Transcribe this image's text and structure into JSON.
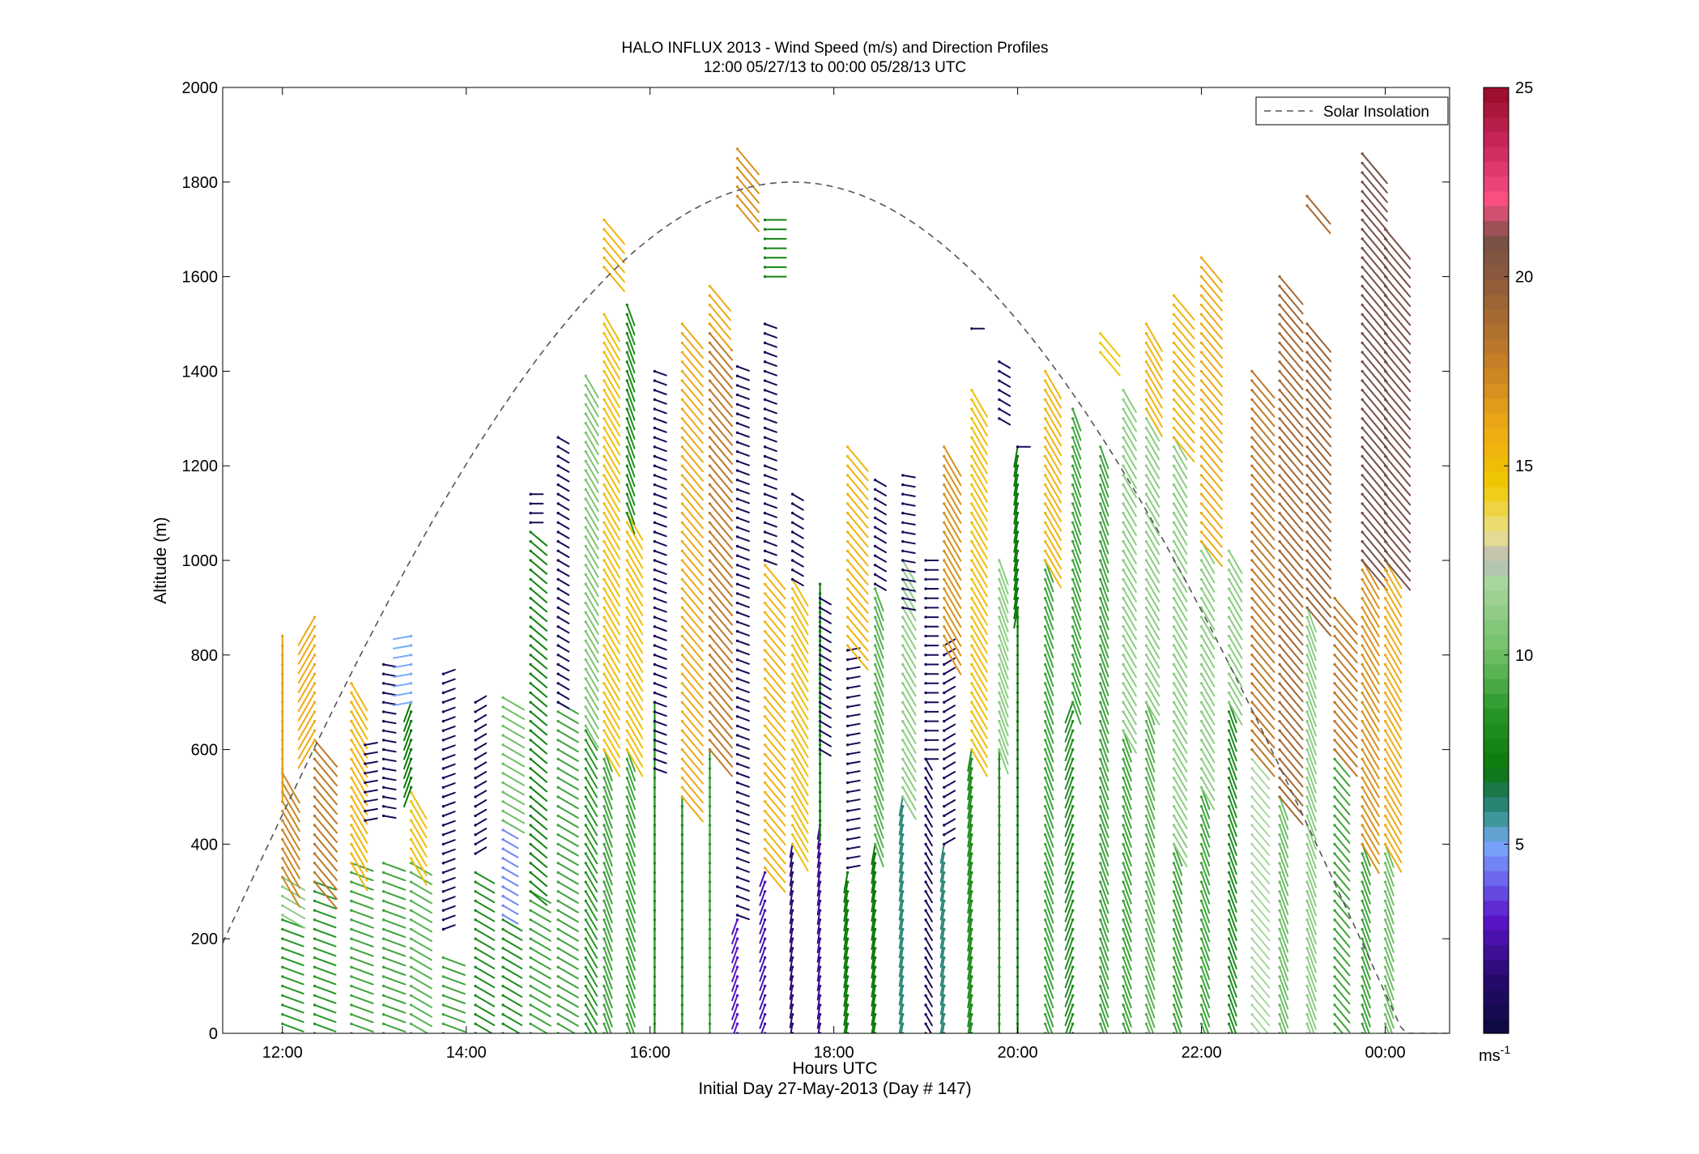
{
  "chart_data": {
    "type": "vector-wind-profile",
    "title": "HALO INFLUX 2013 - Wind Speed (m/s) and Direction Profiles",
    "subtitle": "12:00 05/27/13 to 00:00 05/28/13  UTC",
    "xlabel": "Hours UTC",
    "xlabel_note": "Initial Day 27-May-2013 (Day # 147)",
    "ylabel": "Altitude (m)",
    "xlim": [
      11.35,
      24.7
    ],
    "ylim": [
      0,
      2000
    ],
    "x_ticks": [
      12,
      14,
      16,
      18,
      20,
      22,
      24
    ],
    "x_tick_labels": [
      "12:00",
      "14:00",
      "16:00",
      "18:00",
      "20:00",
      "22:00",
      "00:00"
    ],
    "y_ticks": [
      0,
      200,
      400,
      600,
      800,
      1000,
      1200,
      1400,
      1600,
      1800,
      2000
    ],
    "y_tick_labels": [
      "0",
      "200",
      "400",
      "600",
      "800",
      "1000",
      "1200",
      "1400",
      "1600",
      "1800",
      "2000"
    ],
    "colorbar": {
      "range": [
        0,
        25
      ],
      "ticks": [
        5,
        10,
        15,
        20,
        25
      ],
      "tick_labels": [
        "5",
        "10",
        "15",
        "20",
        "25"
      ],
      "units": "ms",
      "units_exponent": "-1"
    },
    "legend": {
      "placement": "top-right",
      "entries": [
        {
          "label": "Solar Insolation",
          "style": "dashed",
          "color": "#555555"
        }
      ]
    },
    "solar_insolation": {
      "peak_time": 17.55,
      "peak_altitude": 1800,
      "half_width_hours": 6.65,
      "x_start": 11.35,
      "x_end": 24.7
    },
    "profiles": [
      {
        "t": 12.0,
        "segments": [
          {
            "z0": 0,
            "z1": 250,
            "speed": 8.5,
            "dir": 290
          },
          {
            "z0": 250,
            "z1": 330,
            "speed": 11,
            "dir": 300
          },
          {
            "z0": 330,
            "z1": 560,
            "speed": 17.5,
            "dir": 330
          },
          {
            "z0": 560,
            "z1": 850,
            "speed": 16.5,
            "dir": 0
          }
        ]
      },
      {
        "t": 12.35,
        "segments": [
          {
            "z0": 0,
            "z1": 320,
            "speed": 8.5,
            "dir": 290
          },
          {
            "z0": 320,
            "z1": 620,
            "speed": 18,
            "dir": 320
          },
          {
            "z0": 620,
            "z1": 880,
            "speed": 16,
            "dir": 30
          }
        ]
      },
      {
        "t": 12.75,
        "segments": [
          {
            "z0": 0,
            "z1": 360,
            "speed": 9,
            "dir": 290
          },
          {
            "z0": 360,
            "z1": 740,
            "speed": 15.5,
            "dir": 330
          }
        ]
      },
      {
        "t": 12.9,
        "segments": [
          {
            "z0": 450,
            "z1": 620,
            "speed": 0.8,
            "dir": 260
          }
        ]
      },
      {
        "t": 13.1,
        "segments": [
          {
            "z0": 0,
            "z1": 360,
            "speed": 9,
            "dir": 290
          },
          {
            "z0": 460,
            "z1": 780,
            "speed": 0.8,
            "dir": 280
          }
        ]
      },
      {
        "t": 13.4,
        "segments": [
          {
            "z0": 0,
            "z1": 370,
            "speed": 9.5,
            "dir": 300
          },
          {
            "z0": 370,
            "z1": 520,
            "speed": 15,
            "dir": 330
          },
          {
            "z0": 520,
            "z1": 700,
            "speed": 7,
            "dir": 20
          },
          {
            "z0": 700,
            "z1": 840,
            "speed": 5,
            "dir": 80
          }
        ]
      },
      {
        "t": 13.75,
        "segments": [
          {
            "z0": 0,
            "z1": 160,
            "speed": 9,
            "dir": 290
          },
          {
            "z0": 220,
            "z1": 770,
            "speed": 0.8,
            "dir": 250
          }
        ]
      },
      {
        "t": 14.1,
        "segments": [
          {
            "z0": 0,
            "z1": 350,
            "speed": 8,
            "dir": 300
          },
          {
            "z0": 380,
            "z1": 700,
            "speed": 0.8,
            "dir": 240
          }
        ]
      },
      {
        "t": 14.4,
        "segments": [
          {
            "z0": 0,
            "z1": 250,
            "speed": 8,
            "dir": 300
          },
          {
            "z0": 250,
            "z1": 450,
            "speed": 4.5,
            "dir": 300
          },
          {
            "z0": 450,
            "z1": 720,
            "speed": 10,
            "dir": 300
          }
        ]
      },
      {
        "t": 14.7,
        "segments": [
          {
            "z0": 0,
            "z1": 300,
            "speed": 9,
            "dir": 300
          },
          {
            "z0": 300,
            "z1": 1060,
            "speed": 7.5,
            "dir": 310
          },
          {
            "z0": 1080,
            "z1": 1150,
            "speed": 0.8,
            "dir": 270
          }
        ]
      },
      {
        "t": 15.0,
        "segments": [
          {
            "z0": 0,
            "z1": 700,
            "speed": 9,
            "dir": 300
          },
          {
            "z0": 700,
            "z1": 1260,
            "speed": 0.8,
            "dir": 300
          }
        ]
      },
      {
        "t": 15.3,
        "segments": [
          {
            "z0": 0,
            "z1": 650,
            "speed": 8.5,
            "dir": 330
          },
          {
            "z0": 650,
            "z1": 1400,
            "speed": 10.5,
            "dir": 330
          }
        ]
      },
      {
        "t": 15.5,
        "segments": [
          {
            "z0": 0,
            "z1": 600,
            "speed": 9,
            "dir": 340
          },
          {
            "z0": 600,
            "z1": 1520,
            "speed": 15,
            "dir": 330
          },
          {
            "z0": 1620,
            "z1": 1720,
            "speed": 15.5,
            "dir": 320
          }
        ]
      },
      {
        "t": 15.75,
        "segments": [
          {
            "z0": 0,
            "z1": 600,
            "speed": 9,
            "dir": 340
          },
          {
            "z0": 600,
            "z1": 1100,
            "speed": 15,
            "dir": 330
          },
          {
            "z0": 1100,
            "z1": 1540,
            "speed": 8,
            "dir": 340
          }
        ]
      },
      {
        "t": 16.05,
        "segments": [
          {
            "z0": 0,
            "z1": 700,
            "speed": 8,
            "dir": 0
          },
          {
            "z0": 560,
            "z1": 1410,
            "speed": 0.8,
            "dir": 290
          }
        ]
      },
      {
        "t": 16.35,
        "segments": [
          {
            "z0": 0,
            "z1": 500,
            "speed": 8,
            "dir": 0
          },
          {
            "z0": 500,
            "z1": 1500,
            "speed": 16,
            "dir": 320
          }
        ]
      },
      {
        "t": 16.65,
        "segments": [
          {
            "z0": 0,
            "z1": 600,
            "speed": 8.5,
            "dir": 0
          },
          {
            "z0": 600,
            "z1": 1500,
            "speed": 18,
            "dir": 320
          },
          {
            "z0": 1500,
            "z1": 1580,
            "speed": 16,
            "dir": 320
          }
        ]
      },
      {
        "t": 16.95,
        "segments": [
          {
            "z0": 0,
            "z1": 250,
            "speed": 3,
            "dir": 20
          },
          {
            "z0": 250,
            "z1": 1420,
            "speed": 0.8,
            "dir": 290
          },
          {
            "z0": 1750,
            "z1": 1880,
            "speed": 17,
            "dir": 320
          }
        ]
      },
      {
        "t": 17.25,
        "segments": [
          {
            "z0": 0,
            "z1": 350,
            "speed": 2.5,
            "dir": 20
          },
          {
            "z0": 350,
            "z1": 1000,
            "speed": 15.5,
            "dir": 320
          },
          {
            "z0": 1000,
            "z1": 1500,
            "speed": 0.8,
            "dir": 290
          },
          {
            "z0": 1600,
            "z1": 1720,
            "speed": 7.5,
            "dir": 270
          }
        ]
      },
      {
        "t": 17.55,
        "segments": [
          {
            "z0": 0,
            "z1": 400,
            "speed": 1.5,
            "dir": 10
          },
          {
            "z0": 400,
            "z1": 960,
            "speed": 15,
            "dir": 330
          },
          {
            "z0": 960,
            "z1": 1140,
            "speed": 0.8,
            "dir": 300
          }
        ]
      },
      {
        "t": 17.85,
        "segments": [
          {
            "z0": 0,
            "z1": 450,
            "speed": 2,
            "dir": 10
          },
          {
            "z0": 450,
            "z1": 950,
            "speed": 7,
            "dir": 0
          },
          {
            "z0": 600,
            "z1": 930,
            "speed": 0.8,
            "dir": 300
          }
        ]
      },
      {
        "t": 18.15,
        "segments": [
          {
            "z0": 0,
            "z1": 350,
            "speed": 7,
            "dir": 10
          },
          {
            "z0": 350,
            "z1": 820,
            "speed": 0.8,
            "dir": 260
          },
          {
            "z0": 820,
            "z1": 1240,
            "speed": 15.5,
            "dir": 320
          }
        ]
      },
      {
        "t": 18.45,
        "segments": [
          {
            "z0": 0,
            "z1": 400,
            "speed": 7,
            "dir": 10
          },
          {
            "z0": 400,
            "z1": 950,
            "speed": 9.5,
            "dir": 340
          },
          {
            "z0": 950,
            "z1": 1180,
            "speed": 0.8,
            "dir": 300
          }
        ]
      },
      {
        "t": 18.75,
        "segments": [
          {
            "z0": 0,
            "z1": 500,
            "speed": 6,
            "dir": 10
          },
          {
            "z0": 500,
            "z1": 1000,
            "speed": 11,
            "dir": 330
          },
          {
            "z0": 900,
            "z1": 1180,
            "speed": 0.8,
            "dir": 280
          }
        ]
      },
      {
        "t": 19.0,
        "segments": [
          {
            "z0": 0,
            "z1": 580,
            "speed": 1,
            "dir": 330
          },
          {
            "z0": 580,
            "z1": 1000,
            "speed": 0.8,
            "dir": 270
          }
        ]
      },
      {
        "t": 19.2,
        "segments": [
          {
            "z0": 0,
            "z1": 400,
            "speed": 6,
            "dir": 10
          },
          {
            "z0": 400,
            "z1": 820,
            "speed": 0.8,
            "dir": 240
          },
          {
            "z0": 820,
            "z1": 1240,
            "speed": 17,
            "dir": 330
          }
        ]
      },
      {
        "t": 19.5,
        "segments": [
          {
            "z0": 0,
            "z1": 600,
            "speed": 8,
            "dir": 10
          },
          {
            "z0": 600,
            "z1": 1360,
            "speed": 15,
            "dir": 330
          },
          {
            "z0": 1490,
            "z1": 1500,
            "speed": 0.8,
            "dir": 270
          }
        ]
      },
      {
        "t": 19.8,
        "segments": [
          {
            "z0": 0,
            "z1": 600,
            "speed": 8,
            "dir": 0
          },
          {
            "z0": 600,
            "z1": 1000,
            "speed": 11,
            "dir": 340
          },
          {
            "z0": 1300,
            "z1": 1420,
            "speed": 0.8,
            "dir": 300
          }
        ]
      },
      {
        "t": 20.0,
        "segments": [
          {
            "z0": 0,
            "z1": 900,
            "speed": 7,
            "dir": 0
          },
          {
            "z0": 900,
            "z1": 1240,
            "speed": 7,
            "dir": 10
          },
          {
            "z0": 1240,
            "z1": 1250,
            "speed": 0.8,
            "dir": 270
          }
        ]
      },
      {
        "t": 20.3,
        "segments": [
          {
            "z0": 0,
            "z1": 1000,
            "speed": 9,
            "dir": 340
          },
          {
            "z0": 1000,
            "z1": 1400,
            "speed": 15.5,
            "dir": 330
          }
        ]
      },
      {
        "t": 20.6,
        "segments": [
          {
            "z0": 0,
            "z1": 700,
            "speed": 8,
            "dir": 20
          },
          {
            "z0": 700,
            "z1": 1330,
            "speed": 9,
            "dir": 340
          }
        ]
      },
      {
        "t": 20.9,
        "segments": [
          {
            "z0": 0,
            "z1": 1240,
            "speed": 9,
            "dir": 340
          },
          {
            "z0": 1440,
            "z1": 1480,
            "speed": 14.5,
            "dir": 320
          }
        ]
      },
      {
        "t": 21.15,
        "segments": [
          {
            "z0": 0,
            "z1": 640,
            "speed": 9,
            "dir": 340
          },
          {
            "z0": 640,
            "z1": 1360,
            "speed": 11,
            "dir": 330
          }
        ]
      },
      {
        "t": 21.4,
        "segments": [
          {
            "z0": 0,
            "z1": 700,
            "speed": 9.5,
            "dir": 340
          },
          {
            "z0": 700,
            "z1": 1320,
            "speed": 11,
            "dir": 330
          },
          {
            "z0": 1320,
            "z1": 1500,
            "speed": 15.5,
            "dir": 330
          }
        ]
      },
      {
        "t": 21.7,
        "segments": [
          {
            "z0": 0,
            "z1": 400,
            "speed": 9,
            "dir": 340
          },
          {
            "z0": 400,
            "z1": 1260,
            "speed": 11,
            "dir": 330
          },
          {
            "z0": 1260,
            "z1": 1560,
            "speed": 15.5,
            "dir": 320
          }
        ]
      },
      {
        "t": 22.0,
        "segments": [
          {
            "z0": 0,
            "z1": 520,
            "speed": 9,
            "dir": 340
          },
          {
            "z0": 520,
            "z1": 1040,
            "speed": 11,
            "dir": 330
          },
          {
            "z0": 1040,
            "z1": 1640,
            "speed": 16,
            "dir": 320
          }
        ]
      },
      {
        "t": 22.3,
        "segments": [
          {
            "z0": 0,
            "z1": 700,
            "speed": 8,
            "dir": 340
          },
          {
            "z0": 700,
            "z1": 1020,
            "speed": 11,
            "dir": 330
          }
        ]
      },
      {
        "t": 22.55,
        "segments": [
          {
            "z0": 0,
            "z1": 600,
            "speed": 12,
            "dir": 320
          },
          {
            "z0": 600,
            "z1": 1400,
            "speed": 18,
            "dir": 320
          }
        ]
      },
      {
        "t": 22.85,
        "segments": [
          {
            "z0": 0,
            "z1": 500,
            "speed": 10,
            "dir": 340
          },
          {
            "z0": 500,
            "z1": 1600,
            "speed": 19,
            "dir": 320
          }
        ]
      },
      {
        "t": 23.15,
        "segments": [
          {
            "z0": 0,
            "z1": 900,
            "speed": 11,
            "dir": 340
          },
          {
            "z0": 900,
            "z1": 1500,
            "speed": 19.5,
            "dir": 320
          },
          {
            "z0": 1750,
            "z1": 1780,
            "speed": 19,
            "dir": 320
          }
        ]
      },
      {
        "t": 23.45,
        "segments": [
          {
            "z0": 0,
            "z1": 600,
            "speed": 9,
            "dir": 320
          },
          {
            "z0": 600,
            "z1": 920,
            "speed": 18,
            "dir": 320
          }
        ]
      },
      {
        "t": 23.75,
        "segments": [
          {
            "z0": 0,
            "z1": 400,
            "speed": 9,
            "dir": 340
          },
          {
            "z0": 400,
            "z1": 1000,
            "speed": 17,
            "dir": 330
          },
          {
            "z0": 1000,
            "z1": 1860,
            "speed": 21,
            "dir": 320
          }
        ]
      },
      {
        "t": 24.0,
        "segments": [
          {
            "z0": 0,
            "z1": 400,
            "speed": 10,
            "dir": 340
          },
          {
            "z0": 400,
            "z1": 1000,
            "speed": 16,
            "dir": 330
          },
          {
            "z0": 1000,
            "z1": 1700,
            "speed": 21,
            "dir": 320
          }
        ]
      }
    ]
  }
}
